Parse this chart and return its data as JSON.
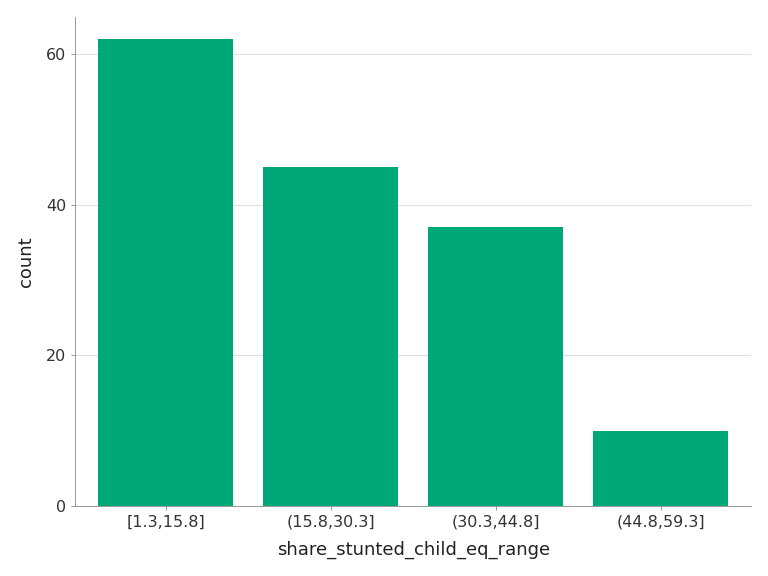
{
  "categories": [
    "[1.3,15.8]",
    "(15.8,30.3]",
    "(30.3,44.8]",
    "(44.8,59.3]"
  ],
  "values": [
    62,
    45,
    37,
    10
  ],
  "bar_color": "#00a878",
  "xlabel": "share_stunted_child_eq_range",
  "ylabel": "count",
  "ylim": [
    0,
    65
  ],
  "yticks": [
    0,
    20,
    40,
    60
  ],
  "background_color": "#ffffff",
  "panel_background": "#ffffff",
  "grid_color": "#e0e0e0",
  "bar_width": 0.82,
  "xlabel_fontsize": 13,
  "ylabel_fontsize": 13,
  "tick_fontsize": 11.5,
  "spine_color": "#888888"
}
